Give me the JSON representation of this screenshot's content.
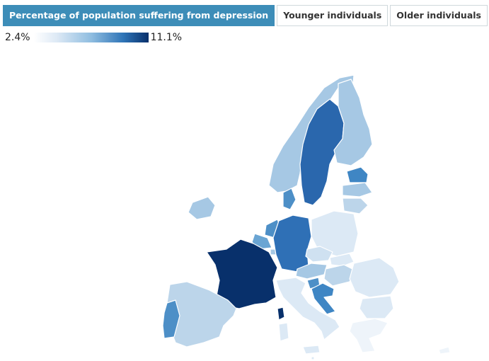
{
  "tabs": [
    {
      "label": "Percentage of population suffering from depression",
      "active": true
    },
    {
      "label": "Younger individuals",
      "active": false
    },
    {
      "label": "Older individuals",
      "active": false
    }
  ],
  "legend": {
    "min": "2.4%",
    "max": "11.1%"
  },
  "colors": {
    "tab_active": "#3d8db8",
    "scale_low": "#ffffff",
    "scale_high": "#08306b"
  }
}
